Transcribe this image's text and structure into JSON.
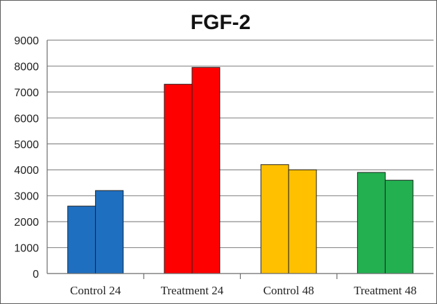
{
  "chart_data": {
    "type": "bar",
    "title": "FGF-2",
    "categories": [
      "Control 24",
      "Treatment 24",
      "Control 48",
      "Treatment 48"
    ],
    "series": [
      {
        "values": [
          2600,
          7300,
          4200,
          3900
        ]
      },
      {
        "values": [
          3200,
          7950,
          4000,
          3600
        ]
      }
    ],
    "category_colors": [
      "#1f6fc1",
      "#ff0000",
      "#ffc000",
      "#22b050"
    ],
    "ylim": [
      0,
      9000
    ],
    "yticks": [
      0,
      1000,
      2000,
      3000,
      4000,
      5000,
      6000,
      7000,
      8000,
      9000
    ],
    "grid": true,
    "legend": "none"
  }
}
